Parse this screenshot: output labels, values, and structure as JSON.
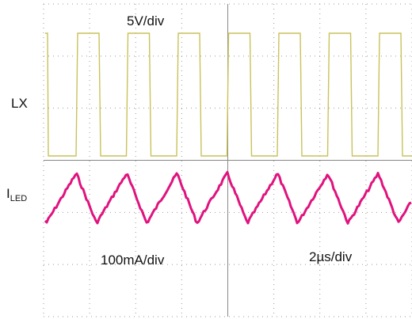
{
  "scope": {
    "channel1": {
      "name": "LX",
      "scale": "5V/div"
    },
    "channel2": {
      "name": "I",
      "name_subscript": "LED",
      "scale": "100mA/div"
    },
    "timebase": "2µs/div"
  }
}
